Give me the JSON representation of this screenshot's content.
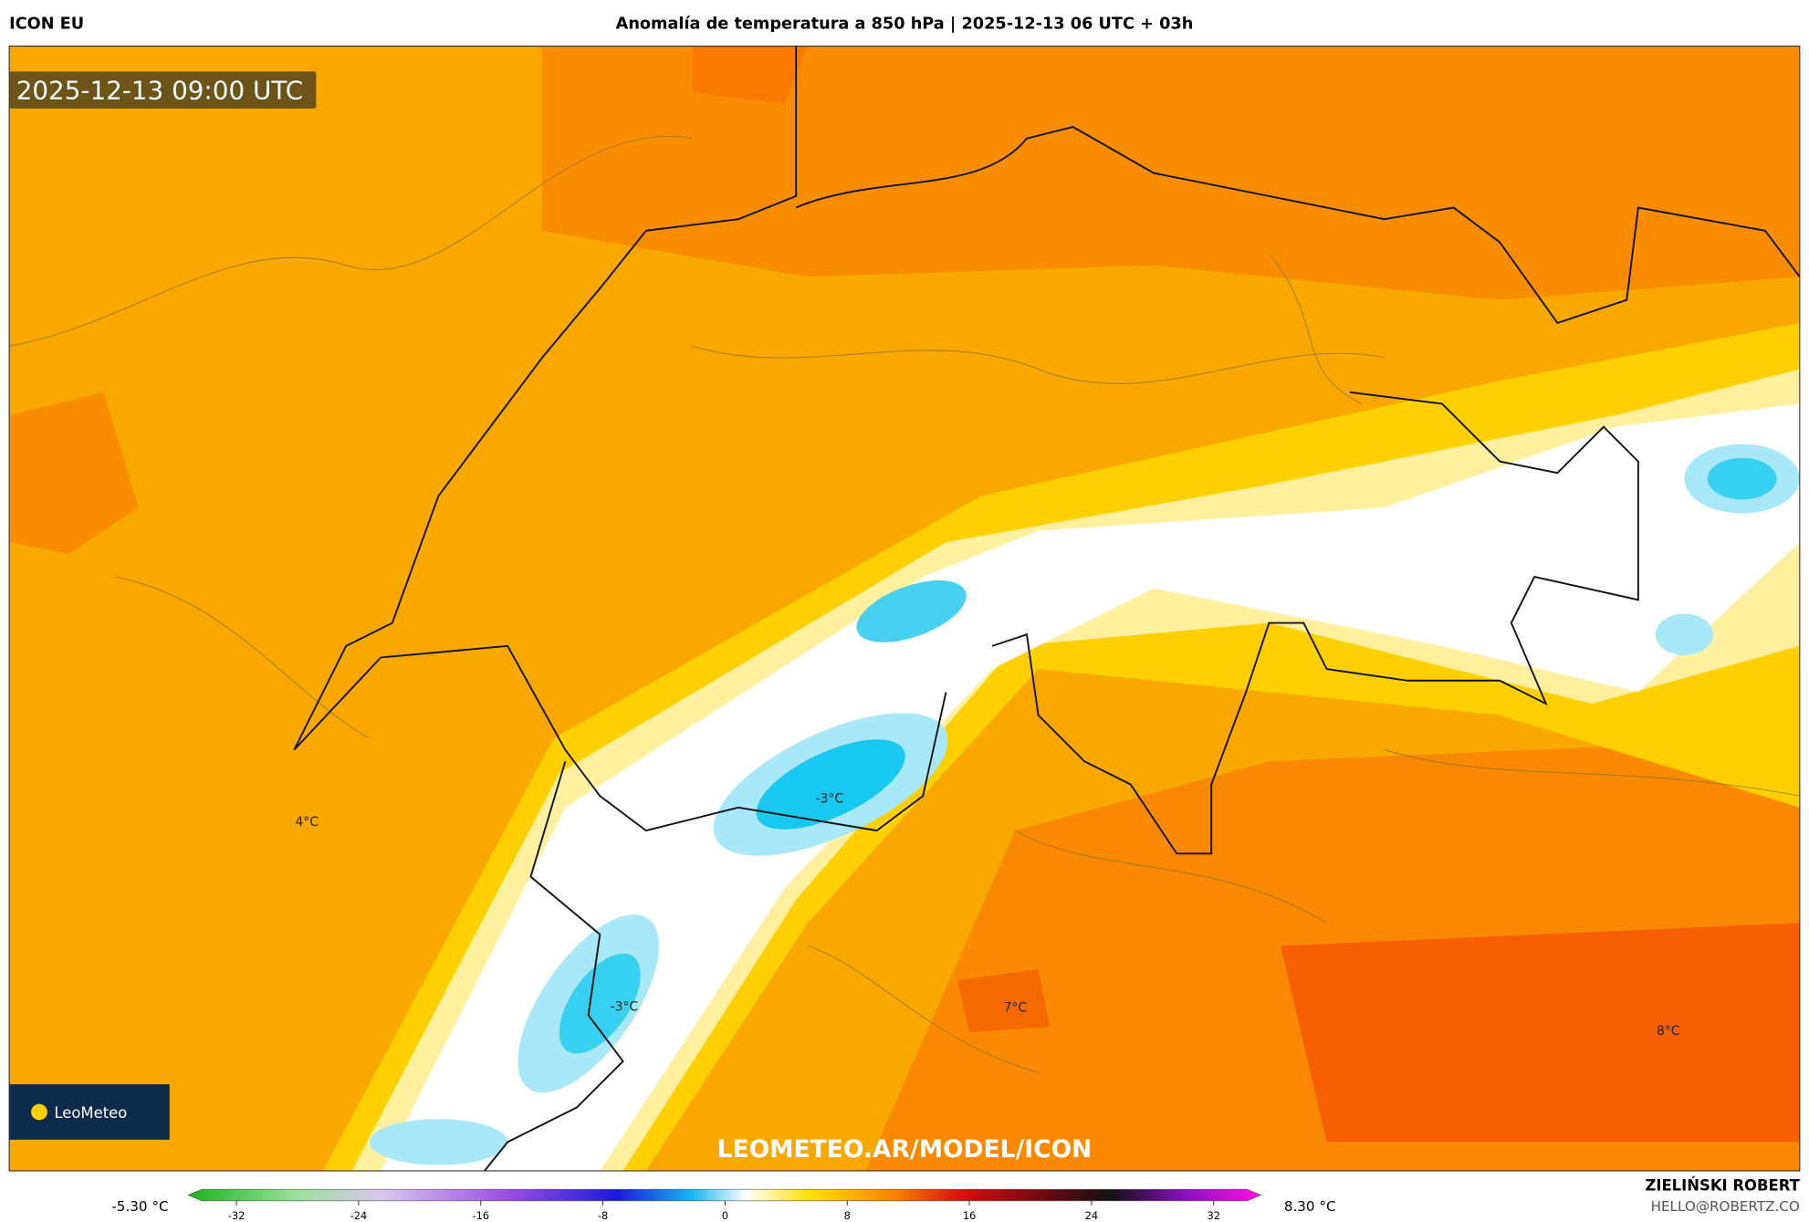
{
  "header": {
    "model": "ICON EU",
    "title": "Anomalía de temperatura a 850 hPa | 2025-12-13 06 UTC + 03h"
  },
  "map": {
    "timestamp": "2025-12-13 09:00 UTC",
    "labels": [
      "4°C",
      "-3°C",
      "-3°C",
      "7°C",
      "8°C"
    ],
    "watermark": "LEOMETEO.AR/MODEL/ICON",
    "logo": "LeoMeteo"
  },
  "colorbar": {
    "min_label": "-5.30 °C",
    "max_label": "8.30 °C",
    "ticks": [
      -32,
      -24,
      -16,
      -8,
      0,
      8,
      16,
      24,
      32
    ]
  },
  "credits": {
    "author": "ZIELIŃSKI ROBERT",
    "email": "HELLO@ROBERTZ.CO"
  }
}
